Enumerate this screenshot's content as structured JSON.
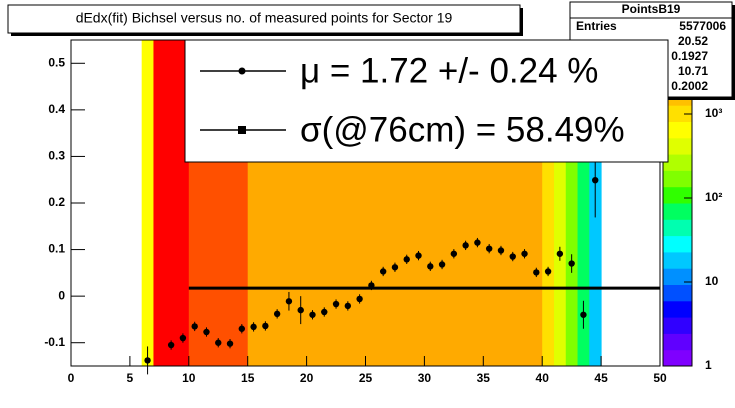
{
  "chart_data": {
    "type": "profile2d",
    "title": "dEdx(fit) Bichsel versus no. of measured points for Sector 19",
    "xlim": [
      0,
      50
    ],
    "xticks": [
      0,
      5,
      10,
      15,
      20,
      25,
      30,
      35,
      40,
      45,
      50
    ],
    "ylim": [
      -0.15,
      0.55
    ],
    "yticks": [
      -0.1,
      0,
      0.1,
      0.2,
      0.3,
      0.4,
      0.5
    ],
    "zlim": [
      1,
      7600
    ],
    "zlog": true,
    "zticks": [
      1,
      10,
      {
        "value": 100,
        "label": "10²"
      },
      {
        "value": 1000,
        "label": "10³"
      }
    ],
    "palette": [
      "#7f00ff",
      "#6000ff",
      "#3000ff",
      "#0000ff",
      "#0050ff",
      "#0090ff",
      "#00c8ff",
      "#00ffff",
      "#00ffb0",
      "#00ff60",
      "#30ff00",
      "#80ff00",
      "#b0ff00",
      "#e0ff00",
      "#ffff00",
      "#ffe000",
      "#ffc000",
      "#ffaa00",
      "#ff5000",
      "#ff0000"
    ],
    "heatmap": {
      "bins": [
        6,
        7,
        8,
        9,
        10,
        11,
        12,
        13,
        14,
        15,
        16,
        17,
        18,
        19,
        20,
        21,
        22,
        23,
        24,
        25,
        26,
        27,
        28,
        29,
        30,
        31,
        32,
        33,
        34,
        35,
        36,
        37,
        38,
        39,
        40,
        41,
        42,
        43,
        44,
        45
      ],
      "counts": [
        620,
        7000,
        6000,
        6000,
        4200,
        4200,
        4200,
        4200,
        3800,
        2500,
        2500,
        2500,
        2500,
        2500,
        2500,
        2500,
        2500,
        2500,
        2500,
        2500,
        2500,
        2500,
        2500,
        2500,
        2500,
        2500,
        2500,
        2500,
        2500,
        2500,
        2500,
        2500,
        2500,
        2500,
        900,
        350,
        150,
        60,
        20
      ]
    },
    "profile": {
      "color": "#000000",
      "x": [
        6.5,
        8.5,
        9.5,
        10.5,
        11.5,
        12.5,
        13.5,
        14.5,
        15.5,
        16.5,
        17.5,
        18.5,
        19.5,
        20.5,
        21.5,
        22.5,
        23.5,
        24.5,
        25.5,
        26.5,
        27.5,
        28.5,
        29.5,
        30.5,
        31.5,
        32.5,
        33.5,
        34.5,
        35.5,
        36.5,
        37.5,
        38.5,
        39.5,
        40.5,
        41.5,
        42.5,
        43.5,
        44.5
      ],
      "values": [
        -0.138,
        -0.105,
        -0.09,
        -0.065,
        -0.077,
        -0.1,
        -0.102,
        -0.07,
        -0.066,
        -0.064,
        -0.038,
        -0.011,
        -0.03,
        -0.04,
        -0.034,
        -0.017,
        -0.021,
        -0.006,
        0.023,
        0.053,
        0.062,
        0.079,
        0.087,
        0.064,
        0.068,
        0.091,
        0.109,
        0.115,
        0.102,
        0.098,
        0.085,
        0.091,
        0.051,
        0.053,
        0.091,
        0.07,
        -0.04,
        0.249
      ],
      "errors": [
        0.03,
        0.01,
        0.01,
        0.01,
        0.01,
        0.01,
        0.01,
        0.01,
        0.01,
        0.01,
        0.01,
        0.02,
        0.03,
        0.01,
        0.01,
        0.01,
        0.01,
        0.01,
        0.01,
        0.01,
        0.01,
        0.01,
        0.01,
        0.01,
        0.01,
        0.01,
        0.01,
        0.01,
        0.01,
        0.01,
        0.01,
        0.01,
        0.01,
        0.01,
        0.015,
        0.02,
        0.03,
        0.08
      ]
    },
    "fit": {
      "x": [
        10,
        50
      ],
      "y": 0.0172,
      "color": "#000000"
    },
    "stats": {
      "title": "PointsB19",
      "entries_label": "Entries",
      "entries": "5577006",
      "values": [
        "20.52",
        "0.1927",
        "10.71",
        "0.2002"
      ]
    },
    "legend": [
      {
        "label": "μ  =  1.72 +/-  0.24 %",
        "marker": "circle"
      },
      {
        "label": "σ(@76cm) = 58.49%",
        "marker": "square"
      }
    ]
  }
}
